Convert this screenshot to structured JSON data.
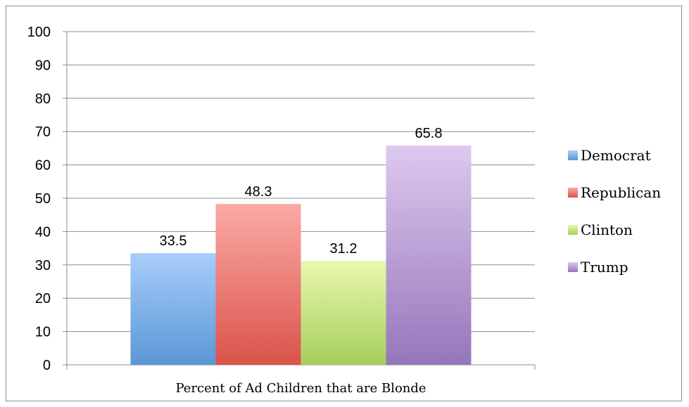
{
  "chart_data": {
    "type": "bar",
    "categories": [
      "Percent of Ad Children that are Blonde"
    ],
    "series": [
      {
        "name": "Democrat",
        "values": [
          33.5
        ]
      },
      {
        "name": "Republican",
        "values": [
          48.3
        ]
      },
      {
        "name": "Clinton",
        "values": [
          31.2
        ]
      },
      {
        "name": "Trump",
        "values": [
          65.8
        ]
      }
    ],
    "data_labels": [
      "33.5",
      "48.3",
      "31.2",
      "65.8"
    ],
    "ylim": [
      0,
      100
    ],
    "yticks": [
      "0",
      "10",
      "20",
      "30",
      "40",
      "50",
      "60",
      "70",
      "80",
      "90",
      "100"
    ],
    "grid": true,
    "legend_position": "right",
    "colors": {
      "Democrat": [
        "#a8cdfa",
        "#5a97d6"
      ],
      "Republican": [
        "#fcaaa6",
        "#d9534a"
      ],
      "Clinton": [
        "#e8f8b0",
        "#a6cf5a"
      ],
      "Trump": [
        "#ddc9ee",
        "#9676bb"
      ]
    }
  }
}
